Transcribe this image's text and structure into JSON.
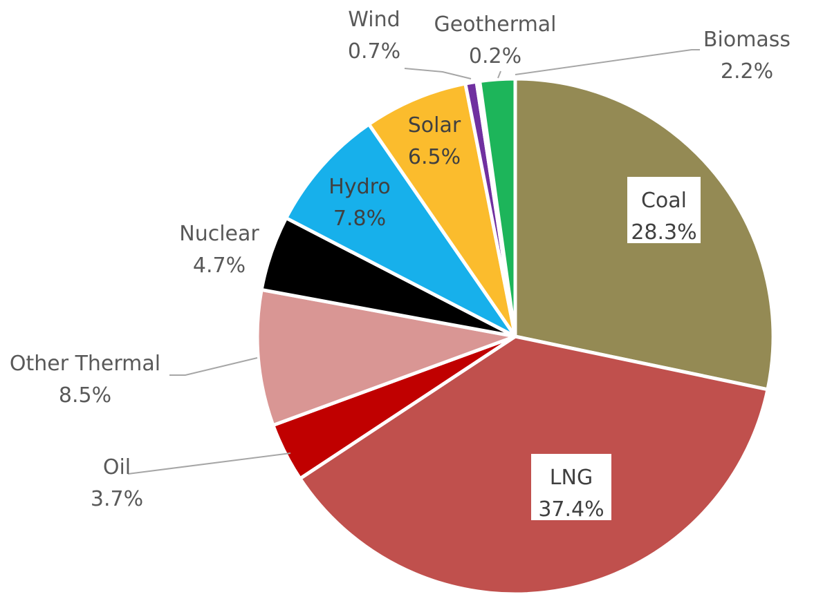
{
  "chart_data": {
    "type": "pie",
    "title": "",
    "start_angle_deg": 0,
    "direction": "clockwise",
    "legend": "none",
    "slices": [
      {
        "label": "Coal",
        "value": 28.3,
        "value_label": "28.3%",
        "color": "#948a54"
      },
      {
        "label": "LNG",
        "value": 37.4,
        "value_label": "37.4%",
        "color": "#c0504d"
      },
      {
        "label": "Oil",
        "value": 3.7,
        "value_label": "3.7%",
        "color": "#c00000"
      },
      {
        "label": "Other Thermal",
        "value": 8.5,
        "value_label": "8.5%",
        "color": "#d99694"
      },
      {
        "label": "Nuclear",
        "value": 4.7,
        "value_label": "4.7%",
        "color": "#000000"
      },
      {
        "label": "Hydro",
        "value": 7.8,
        "value_label": "7.8%",
        "color": "#17b0eb"
      },
      {
        "label": "Solar",
        "value": 6.5,
        "value_label": "6.5%",
        "color": "#fbbc2d"
      },
      {
        "label": "Wind",
        "value": 0.7,
        "value_label": "0.7%",
        "color": "#7030a0"
      },
      {
        "label": "Geothermal",
        "value": 0.2,
        "value_label": "0.2%",
        "color": "#c6e0b4"
      },
      {
        "label": "Biomass",
        "value": 2.2,
        "value_label": "2.2%",
        "color": "#1db55a"
      }
    ]
  }
}
